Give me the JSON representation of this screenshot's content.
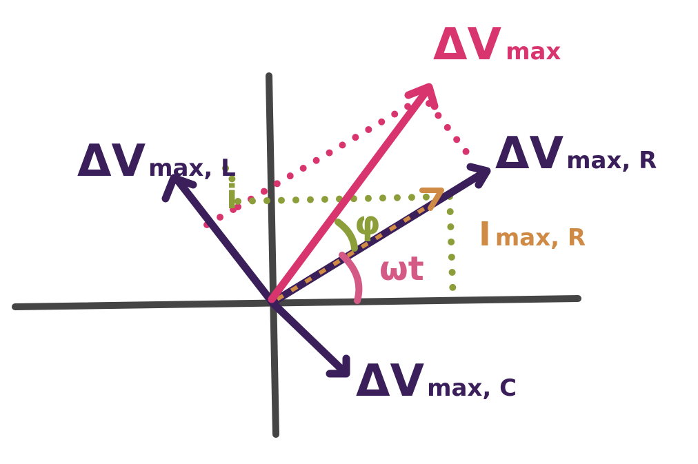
{
  "colors": {
    "axis": "#454545",
    "purple": "#3a1f5a",
    "magenta": "#d8356e",
    "green": "#8b9e3a",
    "orange": "#cf8a45",
    "pink": "#d45a85"
  },
  "labels": {
    "dv_max": {
      "main": "ΔV",
      "sub": "max"
    },
    "dv_max_l": {
      "main": "ΔV",
      "sub": "max, L"
    },
    "dv_max_r": {
      "main": "ΔV",
      "sub": "max, R"
    },
    "dv_max_c": {
      "main": "ΔV",
      "sub": "max, C"
    },
    "i_max_r": {
      "main": "I",
      "sub": "max, R"
    },
    "i_symbol": "i",
    "phi": "φ",
    "omega_t": "ωt"
  }
}
